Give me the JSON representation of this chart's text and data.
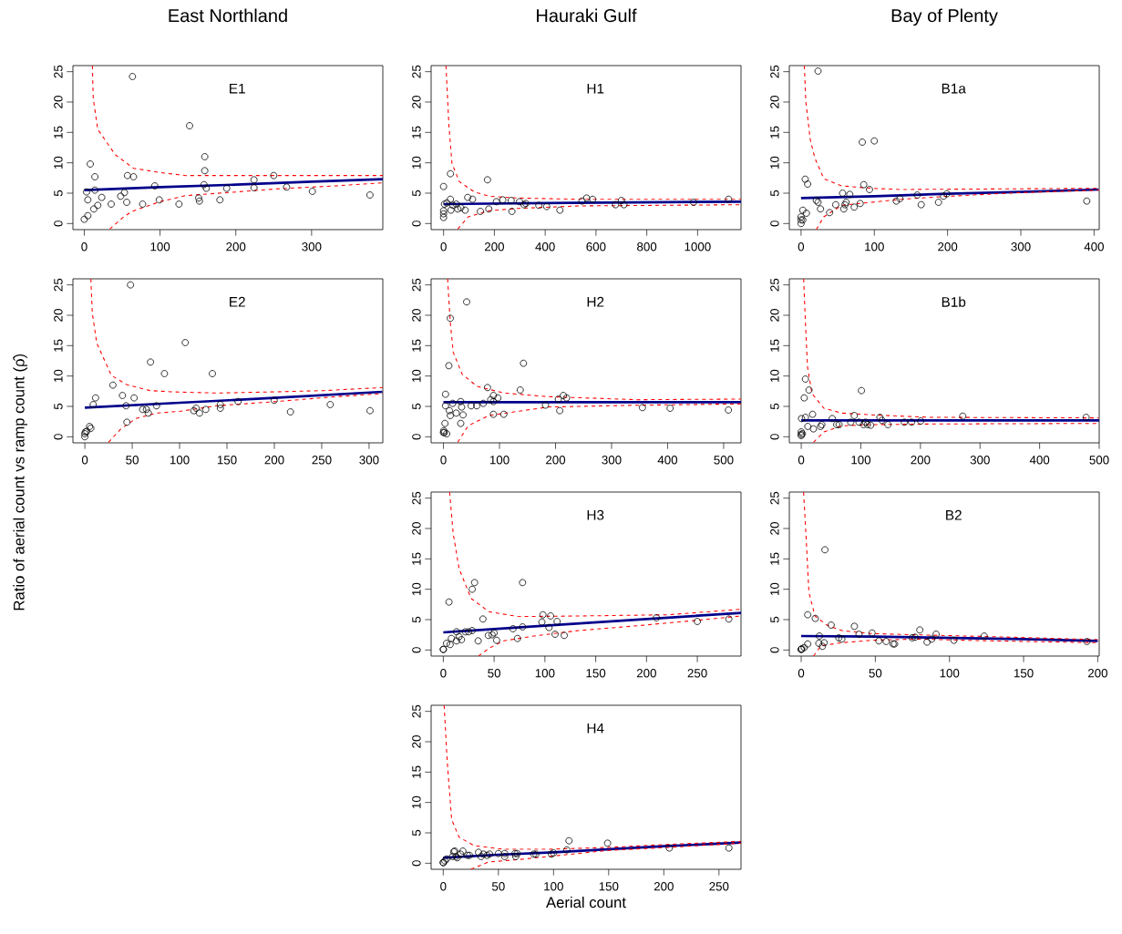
{
  "chart_data": [
    {
      "type": "line",
      "title": "East Northland",
      "annotations": [
        "E1"
      ],
      "xlim": [
        -15,
        394
      ],
      "ylim": [
        -1,
        26
      ],
      "xticks": [
        0,
        100,
        200,
        300
      ],
      "yticks": [
        0,
        5,
        10,
        15,
        20,
        25
      ],
      "series": [
        {
          "type": "scatter",
          "marker": "circle",
          "color": "#000000",
          "x": [
            0,
            4.7,
            3,
            4.7,
            7.9,
            14,
            14,
            12.6,
            17.8,
            23,
            35.5,
            48,
            53,
            56,
            57,
            65,
            63.6,
            77,
            93,
            99,
            125,
            139,
            151,
            152,
            159,
            159,
            158,
            161,
            179,
            188,
            224,
            224,
            250,
            267,
            301,
            377
          ],
          "values": [
            0.7,
            1.3,
            5.2,
            3.9,
            9.8,
            7.7,
            5.5,
            2.4,
            3.0,
            4.3,
            3.2,
            4.5,
            5.1,
            3.5,
            7.9,
            7.7,
            24.2,
            3.2,
            6.2,
            3.9,
            3.2,
            16.1,
            4.2,
            3.7,
            11.0,
            8.7,
            6.4,
            5.8,
            3.9,
            5.8,
            7.2,
            5.9,
            7.9,
            6.0,
            5.3,
            4.7
          ]
        },
        {
          "color": "#00008b",
          "x": [
            0,
            100,
            200,
            300,
            394
          ],
          "values": [
            5.5,
            6.0,
            6.4,
            6.9,
            7.3
          ]
        },
        {
          "color": "#ff0000",
          "line_style": "dashed",
          "x": [
            10.7,
            11.8,
            17.8,
            41,
            65,
            100,
            134,
            200,
            332,
            394
          ],
          "values": [
            26,
            20.6,
            15.5,
            11.3,
            9.1,
            8.4,
            7.9,
            7.9,
            7.9,
            7.9
          ]
        },
        {
          "color": "#ff0000",
          "line_style": "dashed",
          "x": [
            33.6,
            51,
            63,
            100,
            134,
            200,
            253,
            332,
            394
          ],
          "values": [
            -0.9,
            1.0,
            2.0,
            3.6,
            4.6,
            5.2,
            5.7,
            6.2,
            6.7
          ]
        }
      ]
    },
    {
      "type": "line",
      "title": "Hauraki Gulf",
      "annotations": [
        "H1"
      ],
      "xlim": [
        -49,
        1171
      ],
      "ylim": [
        -1,
        26
      ],
      "xticks": [
        0,
        200,
        400,
        600,
        800,
        1000
      ],
      "yticks": [
        0,
        5,
        10,
        15,
        20,
        25
      ],
      "series": [
        {
          "type": "scatter",
          "marker": "circle",
          "color": "#000000",
          "x": [
            0,
            0,
            0,
            0,
            3.5,
            13,
            27,
            27,
            29,
            36,
            50,
            56,
            68,
            85,
            95,
            114,
            145,
            173,
            178,
            208,
            233,
            266,
            269,
            299,
            317,
            324,
            375,
            406,
            458,
            545,
            563,
            587,
            677,
            700,
            710,
            984,
            1122
          ],
          "values": [
            1.0,
            1.6,
            2.1,
            6.1,
            3.2,
            3.4,
            8.2,
            4.0,
            2.2,
            3.0,
            3.2,
            2.4,
            2.6,
            2.2,
            4.3,
            4.0,
            2.0,
            7.2,
            2.4,
            3.6,
            3.9,
            3.8,
            2.0,
            3.6,
            3.1,
            3.3,
            3.0,
            2.8,
            2.2,
            3.7,
            4.2,
            4.0,
            3.1,
            3.8,
            3.1,
            3.5,
            4.0
          ]
        },
        {
          "color": "#00008b",
          "x": [
            0,
            500,
            1171
          ],
          "values": [
            3.2,
            3.4,
            3.6
          ]
        },
        {
          "color": "#ff0000",
          "line_style": "dashed",
          "x": [
            9.4,
            21,
            33,
            62,
            121,
            179,
            296,
            530,
            1171
          ],
          "values": [
            26,
            16.2,
            9.9,
            6.9,
            5.2,
            4.5,
            4.2,
            4.0,
            4.0
          ]
        },
        {
          "color": "#ff0000",
          "line_style": "dashed",
          "x": [
            56,
            97,
            179,
            296,
            530,
            1171
          ],
          "values": [
            -0.9,
            1.1,
            2.1,
            2.5,
            2.9,
            3.1
          ]
        }
      ]
    },
    {
      "type": "line",
      "title": "Bay of Plenty",
      "annotations": [
        "B1a"
      ],
      "xlim": [
        -16,
        407
      ],
      "ylim": [
        -1,
        26
      ],
      "xticks": [
        0,
        100,
        200,
        300,
        400
      ],
      "yticks": [
        0,
        5,
        10,
        15,
        20,
        25
      ],
      "series": [
        {
          "type": "scatter",
          "marker": "circle",
          "color": "#000000",
          "x": [
            0,
            0,
            0,
            2.4,
            2.4,
            5.7,
            7.3,
            9,
            20.8,
            23.2,
            23.2,
            26.5,
            39,
            47.3,
            56.7,
            58.3,
            60,
            61.6,
            66.5,
            72.6,
            80.7,
            83.6,
            85.6,
            93.4,
            100,
            130,
            135,
            158.6,
            164,
            187.6,
            194.5,
            199,
            390
          ],
          "values": [
            0,
            0.6,
            1.1,
            0.6,
            2.2,
            7.3,
            1.7,
            6.5,
            3.8,
            25.1,
            3.5,
            2.4,
            1.8,
            3.1,
            5.0,
            2.4,
            3.1,
            3.5,
            4.8,
            2.7,
            3.3,
            13.4,
            6.4,
            5.6,
            13.6,
            3.7,
            4.1,
            4.7,
            3.1,
            3.5,
            4.5,
            4.9,
            3.7
          ]
        },
        {
          "color": "#00008b",
          "x": [
            0,
            100,
            200,
            300,
            406
          ],
          "values": [
            4.2,
            4.5,
            4.9,
            5.2,
            5.6
          ]
        },
        {
          "color": "#ff0000",
          "line_style": "dashed",
          "x": [
            4.5,
            6.5,
            12.6,
            18.8,
            31,
            55.4,
            96,
            137,
            407
          ],
          "values": [
            26,
            20.1,
            13.8,
            10.8,
            7.4,
            6.2,
            5.8,
            5.6,
            5.8
          ]
        },
        {
          "color": "#ff0000",
          "line_style": "dashed",
          "x": [
            20.8,
            31,
            55.4,
            96,
            137,
            218.5,
            300,
            407
          ],
          "values": [
            -1,
            1.1,
            3.0,
            3.5,
            4.0,
            4.6,
            5.1,
            5.5
          ]
        }
      ]
    },
    {
      "type": "line",
      "annotations": [
        "E2"
      ],
      "ylabel": "Ratio of aerial count vs ramp count (ρ̂)",
      "xlim": [
        -12.6,
        314.5
      ],
      "ylim": [
        -1,
        26
      ],
      "xticks": [
        0,
        50,
        100,
        150,
        200,
        250,
        300
      ],
      "yticks": [
        0,
        5,
        10,
        15,
        20,
        25
      ],
      "series": [
        {
          "type": "scatter",
          "marker": "circle",
          "color": "#000000",
          "x": [
            0,
            0,
            0.6,
            2,
            5,
            6.3,
            8.8,
            11.3,
            29.6,
            39.7,
            43.5,
            44.4,
            48.2,
            52,
            61,
            65,
            67,
            69.3,
            75.6,
            84,
            106,
            115,
            117.5,
            121,
            127.6,
            134.6,
            143,
            143,
            161.7,
            199.8,
            217,
            259,
            301
          ],
          "values": [
            0,
            0.5,
            0.8,
            0.9,
            1.7,
            1.4,
            5.3,
            6.4,
            8.5,
            6.8,
            5.1,
            2.4,
            25.0,
            6.4,
            4.5,
            4.5,
            3.9,
            12.3,
            5.1,
            10.4,
            15.5,
            4.3,
            4.7,
            3.9,
            4.5,
            10.4,
            5.3,
            4.7,
            5.8,
            6.0,
            4.1,
            5.3,
            4.3
          ]
        },
        {
          "color": "#00008b",
          "x": [
            0,
            100,
            200,
            314
          ],
          "values": [
            4.8,
            5.6,
            6.4,
            7.4
          ]
        },
        {
          "color": "#ff0000",
          "line_style": "dashed",
          "x": [
            6.3,
            7.9,
            12.6,
            28,
            44,
            69,
            91,
            139,
            202,
            252,
            314.5
          ],
          "values": [
            26,
            20.3,
            15.4,
            10.1,
            8.6,
            7.6,
            7.4,
            7.2,
            7.4,
            7.6,
            8.1
          ]
        },
        {
          "color": "#ff0000",
          "line_style": "dashed",
          "x": [
            25,
            38,
            54,
            76,
            101,
            139,
            202,
            265,
            314.5
          ],
          "values": [
            -0.9,
            1.3,
            3.0,
            3.9,
            4.2,
            5.1,
            5.8,
            6.6,
            7.1
          ]
        }
      ]
    },
    {
      "type": "line",
      "annotations": [
        "H2"
      ],
      "xlim": [
        -22,
        531
      ],
      "ylim": [
        -1,
        26
      ],
      "xticks": [
        0,
        100,
        200,
        300,
        400,
        500
      ],
      "yticks": [
        0,
        5,
        10,
        15,
        20,
        25
      ],
      "series": [
        {
          "type": "scatter",
          "marker": "circle",
          "color": "#000000",
          "x": [
            0,
            1.6,
            0.5,
            5.8,
            2.7,
            3.7,
            3.7,
            9.6,
            12.2,
            10.6,
            12.2,
            16.5,
            22.8,
            30.8,
            30.8,
            32.4,
            35,
            41.4,
            49.4,
            59.4,
            71.1,
            78.6,
            84.4,
            89.2,
            89.2,
            89.2,
            97.1,
            107.7,
            137,
            142.8,
            182,
            205,
            207.5,
            214,
            219.7,
            355,
            404.5,
            508.5
          ],
          "values": [
            0.7,
            0.7,
            1.0,
            0.5,
            2.2,
            7.0,
            5.1,
            11.7,
            19.5,
            4.3,
            3.5,
            5.5,
            3.9,
            5.8,
            2.2,
            4.9,
            3.6,
            22.2,
            5.1,
            5.1,
            5.5,
            8.1,
            6.1,
            6.8,
            5.8,
            3.7,
            6.4,
            3.7,
            7.7,
            12.1,
            5.2,
            6.2,
            4.3,
            6.8,
            6.4,
            4.8,
            4.7,
            4.4
          ]
        },
        {
          "color": "#00008b",
          "x": [
            0,
            531
          ],
          "values": [
            5.7,
            5.7
          ]
        },
        {
          "color": "#ff0000",
          "line_style": "dashed",
          "x": [
            7.4,
            12.2,
            17.5,
            33.4,
            60,
            107.7,
            187,
            346,
            531
          ],
          "values": [
            26,
            18.8,
            13.9,
            10.3,
            8.3,
            7.2,
            6.6,
            6.1,
            6.2
          ]
        },
        {
          "color": "#ff0000",
          "line_style": "dashed",
          "x": [
            25.5,
            44,
            81,
            134,
            187,
            346,
            531
          ],
          "values": [
            -0.9,
            1.8,
            3.5,
            4.2,
            4.9,
            5.2,
            5.4
          ]
        }
      ]
    },
    {
      "type": "line",
      "annotations": [
        "B1b"
      ],
      "xlim": [
        -20,
        500
      ],
      "ylim": [
        -1,
        26
      ],
      "xticks": [
        0,
        100,
        200,
        300,
        400,
        500
      ],
      "yticks": [
        0,
        5,
        10,
        15,
        20,
        25
      ],
      "series": [
        {
          "type": "scatter",
          "marker": "circle",
          "color": "#000000",
          "x": [
            0,
            0,
            2,
            0,
            0.5,
            5,
            7,
            7,
            11,
            13,
            19,
            20.5,
            32.5,
            34.5,
            52,
            59.5,
            63.5,
            83,
            89,
            97,
            101,
            104.5,
            108,
            111,
            116.5,
            132,
            135.5,
            145.5,
            173,
            185,
            200.5,
            271,
            478
          ],
          "values": [
            0.2,
            0.4,
            0.5,
            0.8,
            3.0,
            6.4,
            3.2,
            9.5,
            1.7,
            7.7,
            3.7,
            1.3,
            1.7,
            2.0,
            3.0,
            2.0,
            2.0,
            2.4,
            3.5,
            2.4,
            7.6,
            2.0,
            2.4,
            2.0,
            1.9,
            3.2,
            2.7,
            2.0,
            2.4,
            2.4,
            2.6,
            3.4,
            3.2
          ]
        },
        {
          "color": "#00008b",
          "x": [
            0,
            500
          ],
          "values": [
            2.7,
            2.7
          ]
        },
        {
          "color": "#ff0000",
          "line_style": "dashed",
          "x": [
            4,
            7,
            10.5,
            18,
            38,
            68,
            118,
            218,
            499
          ],
          "values": [
            26,
            18.8,
            11.5,
            7.1,
            4.7,
            3.9,
            3.6,
            3.2,
            3.1
          ]
        },
        {
          "color": "#ff0000",
          "line_style": "dashed",
          "x": [
            20.5,
            38,
            68,
            118,
            218,
            499
          ],
          "values": [
            -0.9,
            0.8,
            1.8,
            2.0,
            2.1,
            2.2
          ]
        }
      ]
    },
    {
      "type": "line",
      "annotations": [
        "H3"
      ],
      "xlim": [
        -12,
        293
      ],
      "ylim": [
        -1,
        26
      ],
      "xticks": [
        0,
        50,
        100,
        150,
        200,
        250
      ],
      "yticks": [
        0,
        5,
        10,
        15,
        20,
        25
      ],
      "series": [
        {
          "type": "scatter",
          "marker": "circle",
          "color": "#000000",
          "x": [
            0,
            0,
            3.2,
            5.6,
            6.7,
            7.9,
            13,
            13,
            15.5,
            17.9,
            21.7,
            24.9,
            28.4,
            28.4,
            30.8,
            34.3,
            39,
            44.3,
            48,
            50,
            52.5,
            68.6,
            73,
            78,
            78,
            97,
            98,
            104,
            105.6,
            110,
            112,
            119,
            209.7,
            250,
            281
          ],
          "values": [
            0.1,
            0.1,
            1.1,
            7.9,
            0.9,
            1.9,
            1.5,
            3.0,
            2.2,
            1.7,
            3.0,
            3.0,
            10.0,
            3.2,
            11.1,
            1.5,
            5.1,
            2.4,
            2.5,
            2.8,
            1.6,
            3.5,
            1.9,
            11.1,
            3.8,
            4.6,
            5.8,
            3.7,
            5.6,
            2.6,
            4.7,
            2.4,
            5.3,
            4.7,
            5.1
          ]
        },
        {
          "color": "#00008b",
          "x": [
            0,
            100,
            200,
            293
          ],
          "values": [
            2.9,
            4.0,
            5.1,
            6.1
          ]
        },
        {
          "color": "#ff0000",
          "line_style": "dashed",
          "x": [
            6.2,
            9.7,
            15.5,
            27.3,
            44.9,
            74,
            133,
            221,
            293
          ],
          "values": [
            26,
            19.2,
            13.4,
            8.5,
            6.3,
            5.5,
            5.6,
            5.8,
            6.7
          ]
        },
        {
          "color": "#ff0000",
          "line_style": "dashed",
          "x": [
            34.6,
            45,
            59.5,
            89,
            133,
            191.5,
            250,
            293
          ],
          "values": [
            -1,
            0.3,
            1.5,
            2.3,
            3.2,
            4.0,
            4.9,
            5.6
          ]
        }
      ]
    },
    {
      "type": "line",
      "annotations": [
        "B2"
      ],
      "xlim": [
        -8,
        201
      ],
      "ylim": [
        -1,
        26
      ],
      "xticks": [
        0,
        50,
        100,
        150,
        200
      ],
      "yticks": [
        0,
        5,
        10,
        15,
        20,
        25
      ],
      "series": [
        {
          "type": "scatter",
          "marker": "circle",
          "color": "#000000",
          "x": [
            0,
            0,
            0.4,
            2,
            4.4,
            4.4,
            9.5,
            11.9,
            12.3,
            14.3,
            15.5,
            16,
            20.2,
            25.4,
            27.4,
            35.9,
            39,
            47.8,
            52.4,
            57.3,
            62,
            63,
            74.8,
            76.8,
            80,
            84.9,
            88,
            91,
            103,
            123.4,
            192.7
          ],
          "values": [
            0.1,
            0.1,
            0.2,
            0.4,
            1.0,
            5.8,
            5.2,
            1.1,
            2.3,
            0.6,
            1.2,
            16.5,
            4.1,
            2.0,
            1.8,
            3.9,
            2.6,
            2.8,
            1.5,
            1.4,
            1.0,
            1.0,
            2.0,
            2.1,
            3.3,
            1.3,
            1.8,
            2.6,
            1.6,
            2.3,
            1.4
          ]
        },
        {
          "color": "#00008b",
          "x": [
            0,
            50,
            100,
            150,
            200
          ],
          "values": [
            2.3,
            2.2,
            2.0,
            1.8,
            1.5
          ]
        },
        {
          "color": "#ff0000",
          "line_style": "dashed",
          "x": [
            1.6,
            3.2,
            5.2,
            9.3,
            17.3,
            27.4,
            47.6,
            77.8,
            128,
            201
          ],
          "values": [
            26,
            19.2,
            9.5,
            5.6,
            4.1,
            3.2,
            2.7,
            2.5,
            2.2,
            1.7
          ]
        },
        {
          "color": "#ff0000",
          "line_style": "dashed",
          "x": [
            8.3,
            13.3,
            27.4,
            47.6,
            77.8,
            128,
            201
          ],
          "values": [
            -1,
            0.7,
            1.2,
            1.6,
            1.8,
            1.5,
            1.2
          ]
        }
      ]
    },
    {
      "type": "line",
      "annotations": [
        "H4"
      ],
      "xlabel": "Aerial count",
      "xlim": [
        -11,
        270
      ],
      "ylim": [
        -1,
        26
      ],
      "xticks": [
        0,
        50,
        100,
        150,
        200,
        250
      ],
      "yticks": [
        0,
        5,
        10,
        15,
        20,
        25
      ],
      "series": [
        {
          "type": "scatter",
          "marker": "circle",
          "color": "#000000",
          "x": [
            0,
            0,
            1.4,
            3,
            8.4,
            9.5,
            10.5,
            11.6,
            12.7,
            15.7,
            17.8,
            22,
            23.8,
            32,
            34.3,
            36.5,
            39.7,
            42,
            50,
            55.7,
            55.7,
            65,
            65.7,
            67,
            82,
            84,
            98,
            100,
            112,
            114,
            149,
            205,
            259
          ],
          "values": [
            0.1,
            0.1,
            0.4,
            0.7,
            1.1,
            1.9,
            2.0,
            1.1,
            0.9,
            1.5,
            2.0,
            1.3,
            1.3,
            1.8,
            1.1,
            1.5,
            1.3,
            1.5,
            1.6,
            1.6,
            1.1,
            1.6,
            1.1,
            1.6,
            1.5,
            1.5,
            1.5,
            1.7,
            2.2,
            3.7,
            3.3,
            2.5,
            2.5
          ]
        },
        {
          "color": "#00008b",
          "x": [
            0,
            50,
            100,
            150,
            200,
            270
          ],
          "values": [
            0.9,
            1.4,
            1.8,
            2.3,
            2.8,
            3.4
          ]
        },
        {
          "color": "#ff0000",
          "line_style": "dashed",
          "x": [
            0.8,
            3.5,
            7.6,
            14.3,
            27.8,
            54.9,
            95,
            149,
            203,
            270
          ],
          "values": [
            26,
            17,
            7.2,
            4.3,
            2.9,
            2.3,
            2.3,
            2.6,
            3.1,
            3.6
          ]
        },
        {
          "color": "#ff0000",
          "line_style": "dashed",
          "x": [
            25,
            41,
            68,
            95,
            149,
            203,
            270
          ],
          "values": [
            -1,
            0.2,
            0.6,
            1.1,
            2.1,
            2.6,
            3.3
          ]
        }
      ]
    }
  ]
}
